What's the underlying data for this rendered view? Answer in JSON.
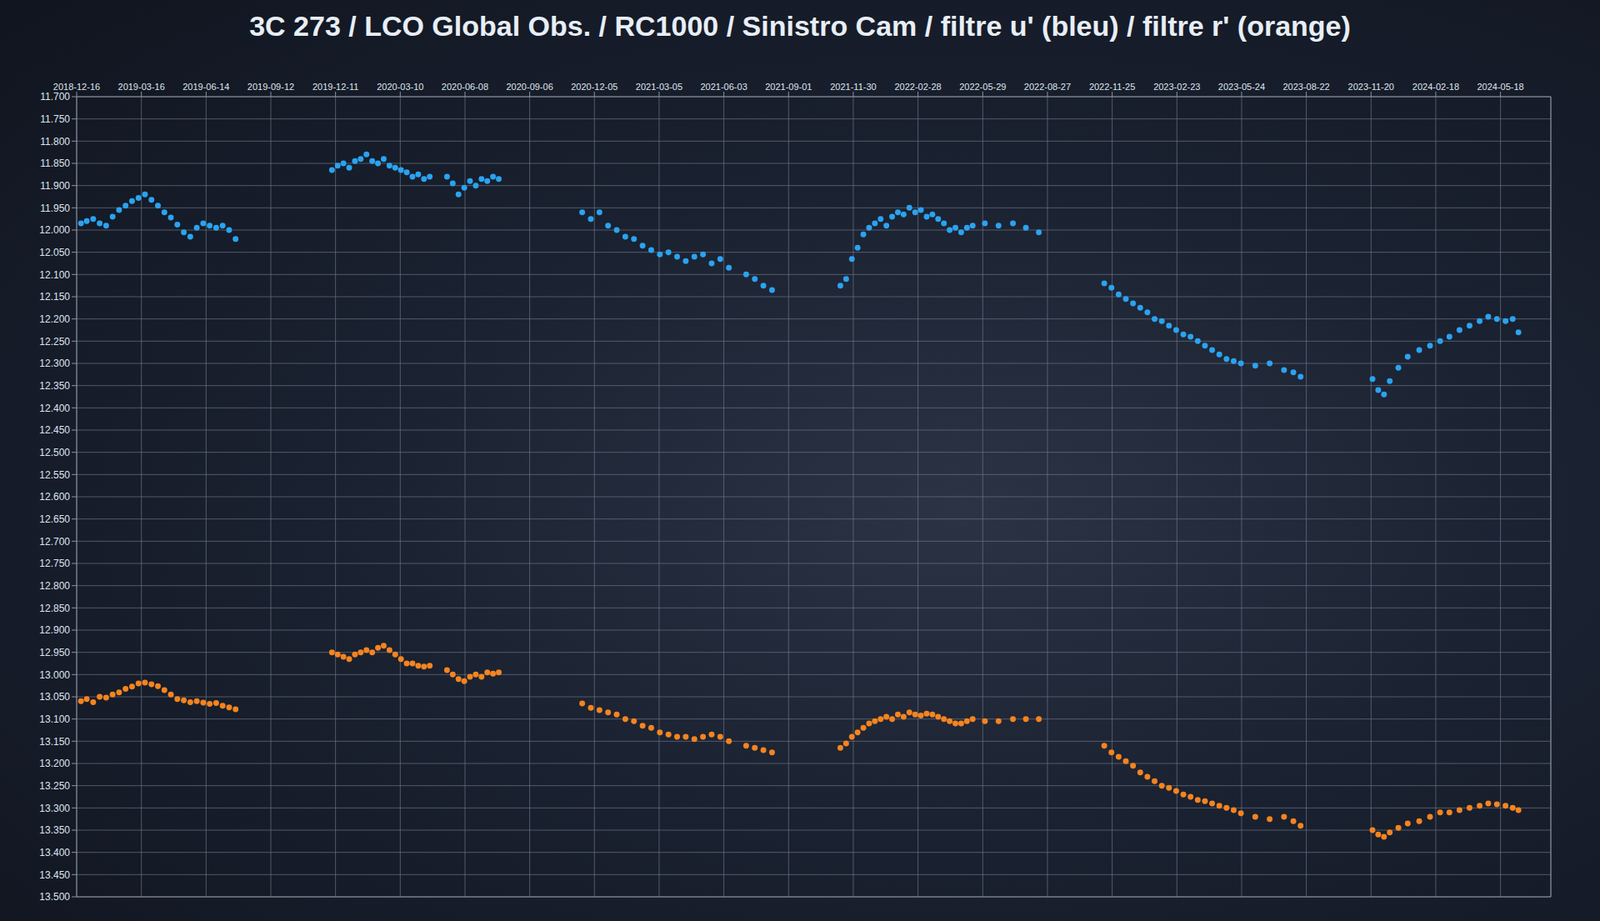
{
  "chart_data": {
    "type": "scatter",
    "title": "3C 273 / LCO Global Obs. / RC1000 / Sinistro Cam / filtre u' (bleu) / filtre r' (orange)",
    "grid": true,
    "marker": "circle",
    "xlim": [
      "2018-12-16",
      "2024-07-27"
    ],
    "xticks": [
      "2018-12-16",
      "2019-03-16",
      "2019-06-14",
      "2019-09-12",
      "2019-12-11",
      "2020-03-10",
      "2020-06-08",
      "2020-09-06",
      "2020-12-05",
      "2021-03-05",
      "2021-06-03",
      "2021-09-01",
      "2021-11-30",
      "2022-02-28",
      "2022-05-29",
      "2022-08-27",
      "2022-11-25",
      "2023-02-23",
      "2023-05-24",
      "2023-08-22",
      "2023-11-20",
      "2024-02-18",
      "2024-05-18"
    ],
    "ylim": [
      11.7,
      13.5
    ],
    "yticks": [
      {
        "value": 11.7,
        "label": "11.700"
      },
      {
        "value": 11.75,
        "label": "11.750"
      },
      {
        "value": 11.8,
        "label": "11.800"
      },
      {
        "value": 11.85,
        "label": "11.850"
      },
      {
        "value": 11.9,
        "label": "11.900"
      },
      {
        "value": 11.95,
        "label": "11.950"
      },
      {
        "value": 12,
        "label": "12.000"
      },
      {
        "value": 12.05,
        "label": "12.050"
      },
      {
        "value": 12.1,
        "label": "12.100"
      },
      {
        "value": 12.15,
        "label": "12.150"
      },
      {
        "value": 12.2,
        "label": "12.200"
      },
      {
        "value": 12.25,
        "label": "12.250"
      },
      {
        "value": 12.3,
        "label": "12.300"
      },
      {
        "value": 12.35,
        "label": "12.350"
      },
      {
        "value": 12.4,
        "label": "12.400"
      },
      {
        "value": 12.45,
        "label": "12.450"
      },
      {
        "value": 12.5,
        "label": "12.500"
      },
      {
        "value": 12.55,
        "label": "12.550"
      },
      {
        "value": 12.6,
        "label": "12.600"
      },
      {
        "value": 12.65,
        "label": "12.650"
      },
      {
        "value": 12.7,
        "label": "12.700"
      },
      {
        "value": 12.75,
        "label": "12.750"
      },
      {
        "value": 12.8,
        "label": "12.800"
      },
      {
        "value": 12.85,
        "label": "12.850"
      },
      {
        "value": 12.9,
        "label": "12.900"
      },
      {
        "value": 12.95,
        "label": "12.950"
      },
      {
        "value": 13,
        "label": "13.000"
      },
      {
        "value": 13.05,
        "label": "13.050"
      },
      {
        "value": 13.1,
        "label": "13.100"
      },
      {
        "value": 13.15,
        "label": "13.150"
      },
      {
        "value": 13.2,
        "label": "13.200"
      },
      {
        "value": 13.25,
        "label": "13.250"
      },
      {
        "value": 13.3,
        "label": "13.300"
      },
      {
        "value": 13.35,
        "label": "13.350"
      },
      {
        "value": 13.4,
        "label": "13.400"
      },
      {
        "value": 13.45,
        "label": "13.450"
      },
      {
        "value": 13.5,
        "label": "13.500"
      }
    ],
    "x": [
      "2018-12-22",
      "2018-12-30",
      "2019-01-08",
      "2019-01-17",
      "2019-01-26",
      "2019-02-04",
      "2019-02-13",
      "2019-02-22",
      "2019-03-03",
      "2019-03-12",
      "2019-03-21",
      "2019-03-30",
      "2019-04-08",
      "2019-04-17",
      "2019-04-26",
      "2019-05-05",
      "2019-05-14",
      "2019-05-23",
      "2019-06-01",
      "2019-06-10",
      "2019-06-19",
      "2019-06-28",
      "2019-07-07",
      "2019-07-16",
      "2019-07-25",
      "2019-12-06",
      "2019-12-14",
      "2019-12-22",
      "2019-12-30",
      "2020-01-07",
      "2020-01-15",
      "2020-01-23",
      "2020-01-31",
      "2020-02-08",
      "2020-02-16",
      "2020-02-24",
      "2020-03-03",
      "2020-03-11",
      "2020-03-19",
      "2020-03-27",
      "2020-04-04",
      "2020-04-12",
      "2020-04-20",
      "2020-05-14",
      "2020-05-22",
      "2020-05-30",
      "2020-06-07",
      "2020-06-15",
      "2020-06-23",
      "2020-07-01",
      "2020-07-09",
      "2020-07-17",
      "2020-07-25",
      "2020-11-18",
      "2020-11-30",
      "2020-12-12",
      "2020-12-24",
      "2021-01-05",
      "2021-01-17",
      "2021-01-29",
      "2021-02-10",
      "2021-02-22",
      "2021-03-06",
      "2021-03-18",
      "2021-03-30",
      "2021-04-11",
      "2021-04-23",
      "2021-05-05",
      "2021-05-17",
      "2021-05-29",
      "2021-06-10",
      "2021-07-04",
      "2021-07-16",
      "2021-07-28",
      "2021-08-09",
      "2021-11-12",
      "2021-11-20",
      "2021-11-28",
      "2021-12-06",
      "2021-12-14",
      "2021-12-22",
      "2021-12-30",
      "2022-01-07",
      "2022-01-15",
      "2022-01-23",
      "2022-01-31",
      "2022-02-08",
      "2022-02-16",
      "2022-02-24",
      "2022-03-04",
      "2022-03-12",
      "2022-03-20",
      "2022-03-28",
      "2022-04-05",
      "2022-04-13",
      "2022-04-21",
      "2022-04-29",
      "2022-05-07",
      "2022-05-15",
      "2022-06-01",
      "2022-06-20",
      "2022-07-10",
      "2022-07-28",
      "2022-08-15",
      "2022-11-14",
      "2022-11-24",
      "2022-12-04",
      "2022-12-14",
      "2022-12-24",
      "2023-01-03",
      "2023-01-13",
      "2023-01-23",
      "2023-02-02",
      "2023-02-12",
      "2023-02-22",
      "2023-03-04",
      "2023-03-14",
      "2023-03-24",
      "2023-04-03",
      "2023-04-13",
      "2023-04-23",
      "2023-05-03",
      "2023-05-13",
      "2023-05-23",
      "2023-06-12",
      "2023-07-02",
      "2023-07-22",
      "2023-08-04",
      "2023-08-14",
      "2023-11-22",
      "2023-11-30",
      "2023-12-08",
      "2023-12-16",
      "2023-12-28",
      "2024-01-10",
      "2024-01-26",
      "2024-02-10",
      "2024-02-24",
      "2024-03-08",
      "2024-03-22",
      "2024-04-05",
      "2024-04-19",
      "2024-05-01",
      "2024-05-13",
      "2024-05-25",
      "2024-06-04",
      "2024-06-12"
    ],
    "series": [
      {
        "name": "filtre u'",
        "color": "#2aa3f0",
        "values": [
          11.985,
          11.98,
          11.975,
          11.985,
          11.99,
          11.97,
          11.955,
          11.945,
          11.935,
          11.928,
          11.92,
          11.932,
          11.945,
          11.96,
          11.972,
          11.988,
          12.005,
          12.015,
          11.995,
          11.985,
          11.99,
          11.995,
          11.99,
          12.0,
          12.02,
          11.865,
          11.855,
          11.85,
          11.86,
          11.845,
          11.84,
          11.83,
          11.845,
          11.85,
          11.84,
          11.855,
          11.86,
          11.865,
          11.87,
          11.88,
          11.875,
          11.885,
          11.88,
          11.88,
          11.895,
          11.92,
          11.905,
          11.89,
          11.9,
          11.885,
          11.89,
          11.88,
          11.885,
          11.96,
          11.975,
          11.96,
          11.99,
          12.0,
          12.015,
          12.02,
          12.035,
          12.045,
          12.055,
          12.05,
          12.06,
          12.07,
          12.06,
          12.055,
          12.075,
          12.065,
          12.085,
          12.1,
          12.11,
          12.125,
          12.135,
          12.125,
          12.11,
          12.065,
          12.04,
          12.01,
          11.995,
          11.985,
          11.975,
          11.99,
          11.97,
          11.96,
          11.965,
          11.95,
          11.96,
          11.955,
          11.97,
          11.965,
          11.975,
          11.985,
          12.0,
          11.995,
          12.005,
          11.995,
          11.99,
          11.985,
          11.99,
          11.985,
          11.995,
          12.005,
          12.12,
          12.13,
          12.145,
          12.155,
          12.165,
          12.175,
          12.185,
          12.2,
          12.205,
          12.215,
          12.225,
          12.235,
          12.24,
          12.25,
          12.26,
          12.27,
          12.28,
          12.29,
          12.295,
          12.3,
          12.305,
          12.3,
          12.315,
          12.32,
          12.33,
          12.335,
          12.36,
          12.37,
          12.34,
          12.31,
          12.285,
          12.27,
          12.26,
          12.25,
          12.24,
          12.225,
          12.215,
          12.205,
          12.195,
          12.2,
          12.205,
          12.2,
          12.23
        ]
      },
      {
        "name": "filtre r'",
        "color": "#f5841f",
        "values": [
          13.06,
          13.055,
          13.062,
          13.05,
          13.052,
          13.045,
          13.04,
          13.032,
          13.027,
          13.02,
          13.018,
          13.022,
          13.026,
          13.035,
          13.045,
          13.055,
          13.058,
          13.062,
          13.06,
          13.063,
          13.066,
          13.064,
          13.07,
          13.074,
          13.078,
          12.95,
          12.955,
          12.96,
          12.965,
          12.955,
          12.95,
          12.945,
          12.95,
          12.94,
          12.935,
          12.945,
          12.955,
          12.965,
          12.975,
          12.975,
          12.98,
          12.982,
          12.98,
          12.99,
          13.0,
          13.01,
          13.015,
          13.005,
          13.0,
          13.005,
          12.995,
          12.998,
          12.995,
          13.065,
          13.075,
          13.08,
          13.085,
          13.09,
          13.1,
          13.105,
          13.115,
          13.12,
          13.13,
          13.135,
          13.14,
          13.14,
          13.145,
          13.14,
          13.135,
          13.14,
          13.15,
          13.16,
          13.165,
          13.17,
          13.175,
          13.165,
          13.155,
          13.14,
          13.13,
          13.12,
          13.11,
          13.105,
          13.1,
          13.095,
          13.1,
          13.09,
          13.095,
          13.085,
          13.09,
          13.092,
          13.088,
          13.09,
          13.095,
          13.1,
          13.105,
          13.11,
          13.11,
          13.105,
          13.1,
          13.105,
          13.105,
          13.1,
          13.1,
          13.1,
          13.16,
          13.175,
          13.185,
          13.195,
          13.205,
          13.22,
          13.23,
          13.24,
          13.25,
          13.255,
          13.262,
          13.27,
          13.275,
          13.282,
          13.285,
          13.29,
          13.295,
          13.3,
          13.305,
          13.312,
          13.32,
          13.325,
          13.32,
          13.33,
          13.34,
          13.35,
          13.36,
          13.365,
          13.355,
          13.345,
          13.335,
          13.33,
          13.32,
          13.31,
          13.31,
          13.305,
          13.3,
          13.295,
          13.29,
          13.292,
          13.295,
          13.3,
          13.305
        ]
      }
    ]
  }
}
